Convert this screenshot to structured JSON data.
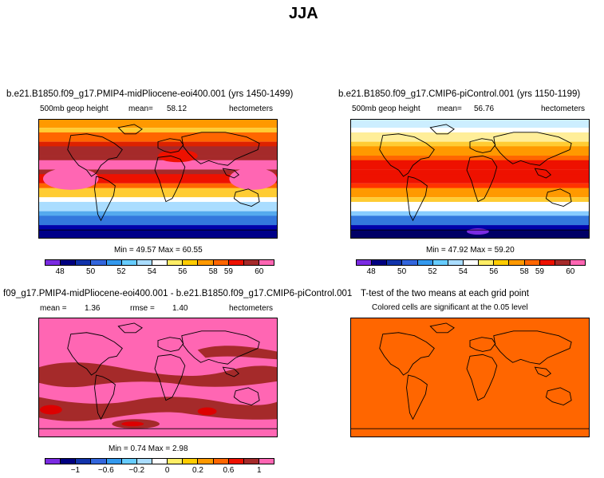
{
  "page_title": "JJA",
  "panels": [
    {
      "id": "top-left",
      "title": "b.e21.B1850.f09_g17.PMIP4-midPliocene-eoi400.001 (yrs 1450-1499)",
      "left_label": "500mb geop height",
      "mean_label": "mean=",
      "mean_value": "58.12",
      "right_label": "hectometers",
      "stats": "Min =  49.57 Max =  60.55",
      "bands": [
        "#ff9900",
        "#ffcc33",
        "#ff6600",
        "#dd2200",
        "#a52a2a",
        "#a52a2a",
        "#ff66b3",
        "#a52a2a",
        "#ee1100",
        "#ff6600",
        "#ffcc33",
        "#ffffff",
        "#aaddff",
        "#55aaee",
        "#3377dd",
        "#0000aa",
        "#000088"
      ]
    },
    {
      "id": "top-right",
      "title": "b.e21.B1850.f09_g17.CMIP6-piControl.001 (yrs 1150-1199)",
      "left_label": "500mb geop height",
      "mean_label": "mean=",
      "mean_value": "56.76",
      "right_label": "hectometers",
      "stats": "Min =  47.92 Max =  59.20",
      "bands": [
        "#cceeff",
        "#ffffff",
        "#ffee99",
        "#ffcc33",
        "#ff9900",
        "#ff6600",
        "#ee1100",
        "#ee1100",
        "#ee1100",
        "#ff3300",
        "#ff9900",
        "#ffcc33",
        "#ffffff",
        "#88ccff",
        "#3377dd",
        "#0000aa",
        "#000066"
      ]
    },
    {
      "id": "bottom-left",
      "title": "f09_g17.PMIP4-midPliocene-eoi400.001 - b.e21.B1850.f09_g17.CMIP6-piControl.001",
      "mean_label": "mean =",
      "mean_value": "1.36",
      "rmse_label": "rmse =",
      "rmse_value": "1.40",
      "right_label": "hectometers",
      "stats": "Min =   0.74 Max =   2.98"
    },
    {
      "id": "bottom-right",
      "title": "T-test of the two means at each grid point",
      "subtitle": "Colored cells are significant at the 0.05 level",
      "fill_color": "#ff6600"
    }
  ],
  "colorbars": {
    "swatches": [
      "#7b2be2",
      "#000080",
      "#1133aa",
      "#3366dd",
      "#3399ee",
      "#66ccff",
      "#aaddff",
      "#ffffff",
      "#ffee66",
      "#ffcc00",
      "#ff9900",
      "#ff6600",
      "#ee1100",
      "#a52a2a",
      "#ff66b3"
    ],
    "top_ticks": [
      "48",
      "50",
      "52",
      "54",
      "56",
      "58",
      "59",
      "60"
    ],
    "bottom_ticks": [
      "−1",
      "−0.6",
      "−0.2",
      "0",
      "0.2",
      "0.6",
      "1"
    ]
  },
  "colors": {
    "diff_pink": "#ff66b3",
    "diff_brown": "#a52a2a",
    "diff_red": "#dd0000",
    "land_line": "#000000"
  }
}
